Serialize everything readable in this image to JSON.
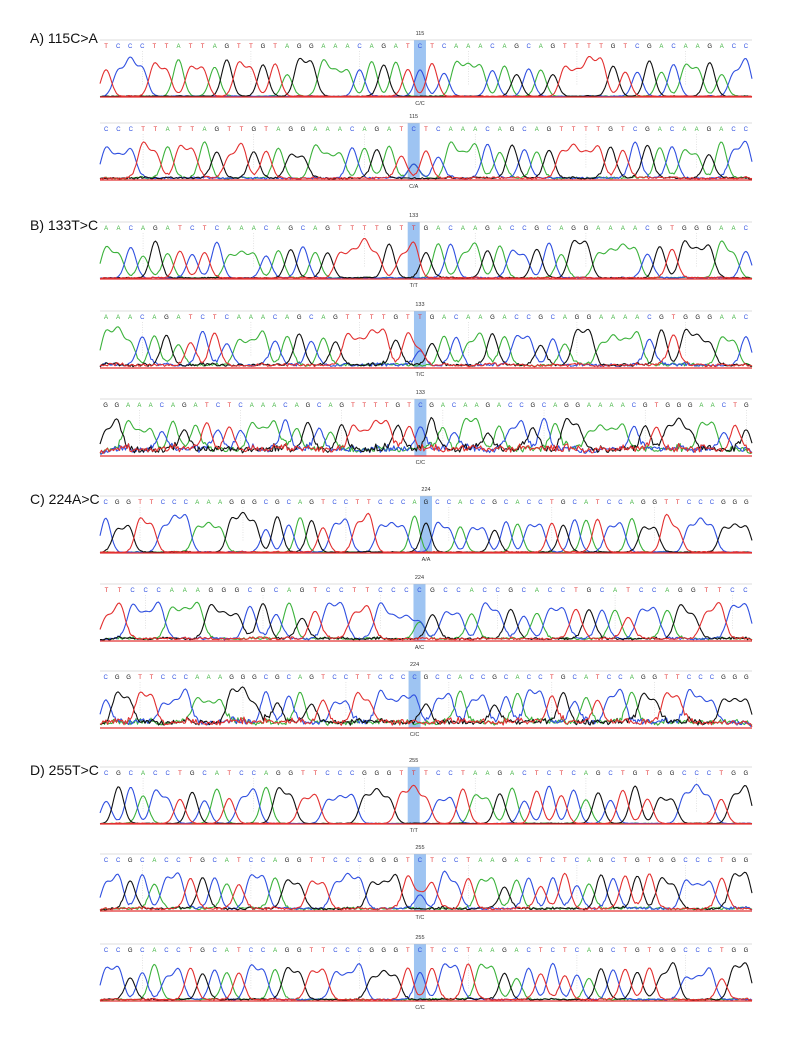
{
  "colors": {
    "A": "#3cb23c",
    "C": "#3050e0",
    "G": "#111111",
    "T": "#e23030",
    "highlight": "#9ec4f2",
    "rule": "#bbbbbb"
  },
  "sections": [
    {
      "label": "A) 115C>A",
      "traces": [
        {
          "position": "115",
          "genotype": "C/C",
          "sequence": "TCCCTTATTAGTTGTAGGAAACAGATCTCAAACAGCAGTTTTGTCGACAAGACC",
          "hl_index": 26,
          "noise": 0.04
        },
        {
          "position": "115",
          "genotype": "C/A",
          "sequence": "CCCTTATTAGTTGTAGGAAACAGATCTCAAACAGCAGTTTTGTCGACAAGACC",
          "hl_index": 25,
          "noise": 0.1
        }
      ]
    },
    {
      "label": "B) 133T>C",
      "traces": [
        {
          "position": "133",
          "genotype": "T/T",
          "sequence": "AACAGATCTCAAACAGCAGTTTTGTTGACAAGACCGCAGGAAAACGTGGGAAC",
          "hl_index": 25,
          "noise": 0.06
        },
        {
          "position": "133",
          "genotype": "T/C",
          "sequence": "AAACAGATCTCAAACAGCAGTTTTGTTGACAAGACCGCAGGAAAACGTGGGAAC",
          "hl_index": 26,
          "noise": 0.15
        },
        {
          "position": "133",
          "genotype": "C/C",
          "sequence": "GGAAACAGATCTCAAACAGCAGTTTTGTCGACAAGACCGCAGGAAAACGTGGGAACTG",
          "hl_index": 28,
          "noise": 0.35
        }
      ]
    },
    {
      "label": "C) 224A>C",
      "traces": [
        {
          "position": "224",
          "genotype": "A/A",
          "sequence": "CGGTTCCCAAAGGGCGCAGTCCTTCCCAGCCACCGCACCTGCATCCAGGTTCCCGGG",
          "hl_index": 28,
          "noise": 0.05
        },
        {
          "position": "224",
          "genotype": "A/C",
          "sequence": "TTCCCAAAGGGCGCAGTCCTTCCCCGCCACCGCACCTGCATCCAGGTTCC",
          "hl_index": 24,
          "noise": 0.12
        },
        {
          "position": "224",
          "genotype": "C/C",
          "sequence": "CGGTTCCCAAAGGGCGCAGTCCTTCCCCGCCACCGCACCTGCATCCAGGTTCCCGGG",
          "hl_index": 27,
          "noise": 0.3
        }
      ]
    },
    {
      "label": "D) 255T>C",
      "traces": [
        {
          "position": "255",
          "genotype": "T/T",
          "sequence": "CGCACCTGCATCCAGGTTCCCGGGTTTCCTAAGACTCTCAGCTGTGGCCCTGG",
          "hl_index": 25,
          "noise": 0.03
        },
        {
          "position": "255",
          "genotype": "T/C",
          "sequence": "CCGCACCTGCATCCAGGTTCCCGGGTCTCCTAAGACTCTCAGCTGTGGCCCTGG",
          "hl_index": 26,
          "noise": 0.12
        },
        {
          "position": "255",
          "genotype": "C/C",
          "sequence": "CCGCACCTGCATCCAGGTTCCCGGGTCTCCTAAGACTCTCAGCTGTGGCCCTGG",
          "hl_index": 26,
          "noise": 0.08
        }
      ]
    }
  ]
}
